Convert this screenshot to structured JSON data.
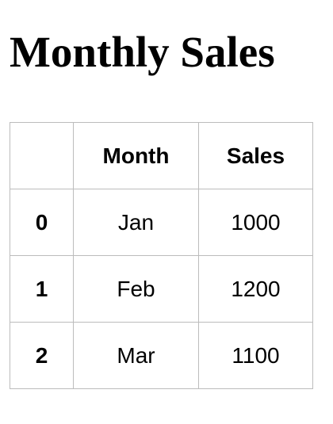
{
  "title": "Monthly Sales",
  "table": {
    "columns": [
      "",
      "Month",
      "Sales"
    ],
    "rows": [
      {
        "index": "0",
        "month": "Jan",
        "sales": "1000"
      },
      {
        "index": "1",
        "month": "Feb",
        "sales": "1200"
      },
      {
        "index": "2",
        "month": "Mar",
        "sales": "1100"
      }
    ]
  }
}
